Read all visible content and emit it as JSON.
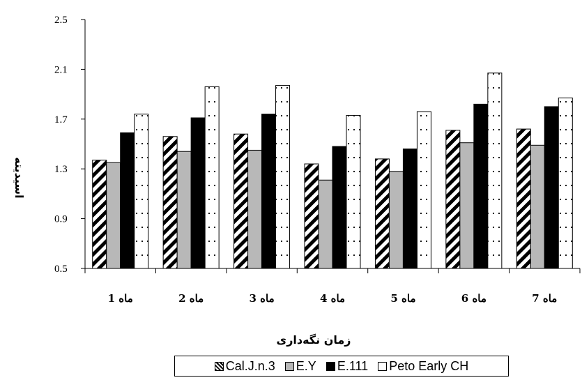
{
  "chart_data": {
    "type": "bar",
    "title": "",
    "xlabel": "زمان نگه‌داری",
    "ylabel": "اسیدیته",
    "ylim": [
      0.5,
      2.5
    ],
    "yticks": [
      "0.5",
      "0.9",
      "1.3",
      "1.7",
      "2.1",
      "2.5"
    ],
    "grid": false,
    "legend_position": "bottom",
    "categories": [
      "ماه 1",
      "ماه 2",
      "ماه 3",
      "ماه 4",
      "ماه 5",
      "ماه 6",
      "ماه 7"
    ],
    "series": [
      {
        "name": "Cal.J.n.3",
        "pattern": "diagonal-hatch",
        "color": "#ffffff",
        "values": [
          1.37,
          1.56,
          1.58,
          1.34,
          1.38,
          1.61,
          1.62
        ]
      },
      {
        "name": "E.Y",
        "pattern": "solid",
        "color": "#b8b8b8",
        "values": [
          1.35,
          1.44,
          1.45,
          1.21,
          1.28,
          1.51,
          1.49
        ]
      },
      {
        "name": "E.111",
        "pattern": "solid",
        "color": "#000000",
        "values": [
          1.59,
          1.71,
          1.74,
          1.48,
          1.46,
          1.82,
          1.8
        ]
      },
      {
        "name": "Peto Early CH",
        "pattern": "dotted",
        "color": "#ffffff",
        "values": [
          1.74,
          1.96,
          1.97,
          1.73,
          1.76,
          2.07,
          1.87
        ]
      }
    ]
  }
}
